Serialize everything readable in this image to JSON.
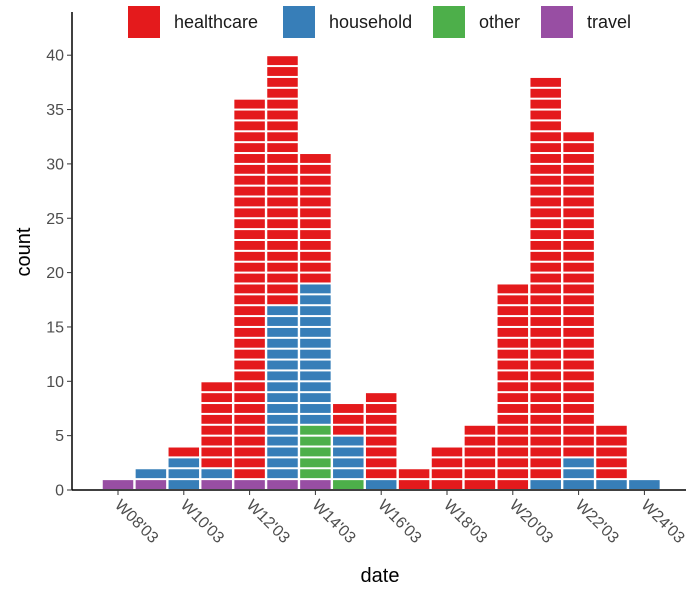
{
  "chart_data": {
    "type": "bar",
    "stacked": true,
    "style": "stacked unit blocks (one block per count)",
    "xlabel": "date",
    "ylabel": "count",
    "ylim": [
      0,
      43
    ],
    "yticks": [
      0,
      5,
      10,
      15,
      20,
      25,
      30,
      35,
      40
    ],
    "grid": false,
    "legend_position": "top",
    "categories": [
      "W08'03",
      "W09'03",
      "W10'03",
      "W11'03",
      "W12'03",
      "W13'03",
      "W14'03",
      "W15'03",
      "W16'03",
      "W17'03",
      "W18'03",
      "W19'03",
      "W20'03",
      "W21'03",
      "W22'03",
      "W23'03",
      "W24'03"
    ],
    "xtick_labels": [
      "W08'03",
      "W10'03",
      "W12'03",
      "W14'03",
      "W16'03",
      "W18'03",
      "W20'03",
      "W22'03",
      "W24'03"
    ],
    "series": [
      {
        "name": "travel",
        "color": "#984EA3",
        "values": [
          1,
          1,
          0,
          1,
          1,
          1,
          1,
          0,
          0,
          0,
          0,
          0,
          0,
          0,
          0,
          0,
          0
        ]
      },
      {
        "name": "other",
        "color": "#4DAF4A",
        "values": [
          0,
          0,
          0,
          0,
          0,
          0,
          5,
          1,
          0,
          0,
          0,
          0,
          0,
          0,
          0,
          0,
          0
        ]
      },
      {
        "name": "household",
        "color": "#377EB8",
        "values": [
          0,
          1,
          3,
          1,
          0,
          16,
          13,
          4,
          1,
          0,
          0,
          0,
          0,
          1,
          3,
          1,
          1
        ]
      },
      {
        "name": "healthcare",
        "color": "#E41A1C",
        "values": [
          0,
          0,
          1,
          8,
          35,
          23,
          12,
          3,
          8,
          2,
          4,
          6,
          19,
          37,
          30,
          5,
          0
        ]
      }
    ]
  }
}
